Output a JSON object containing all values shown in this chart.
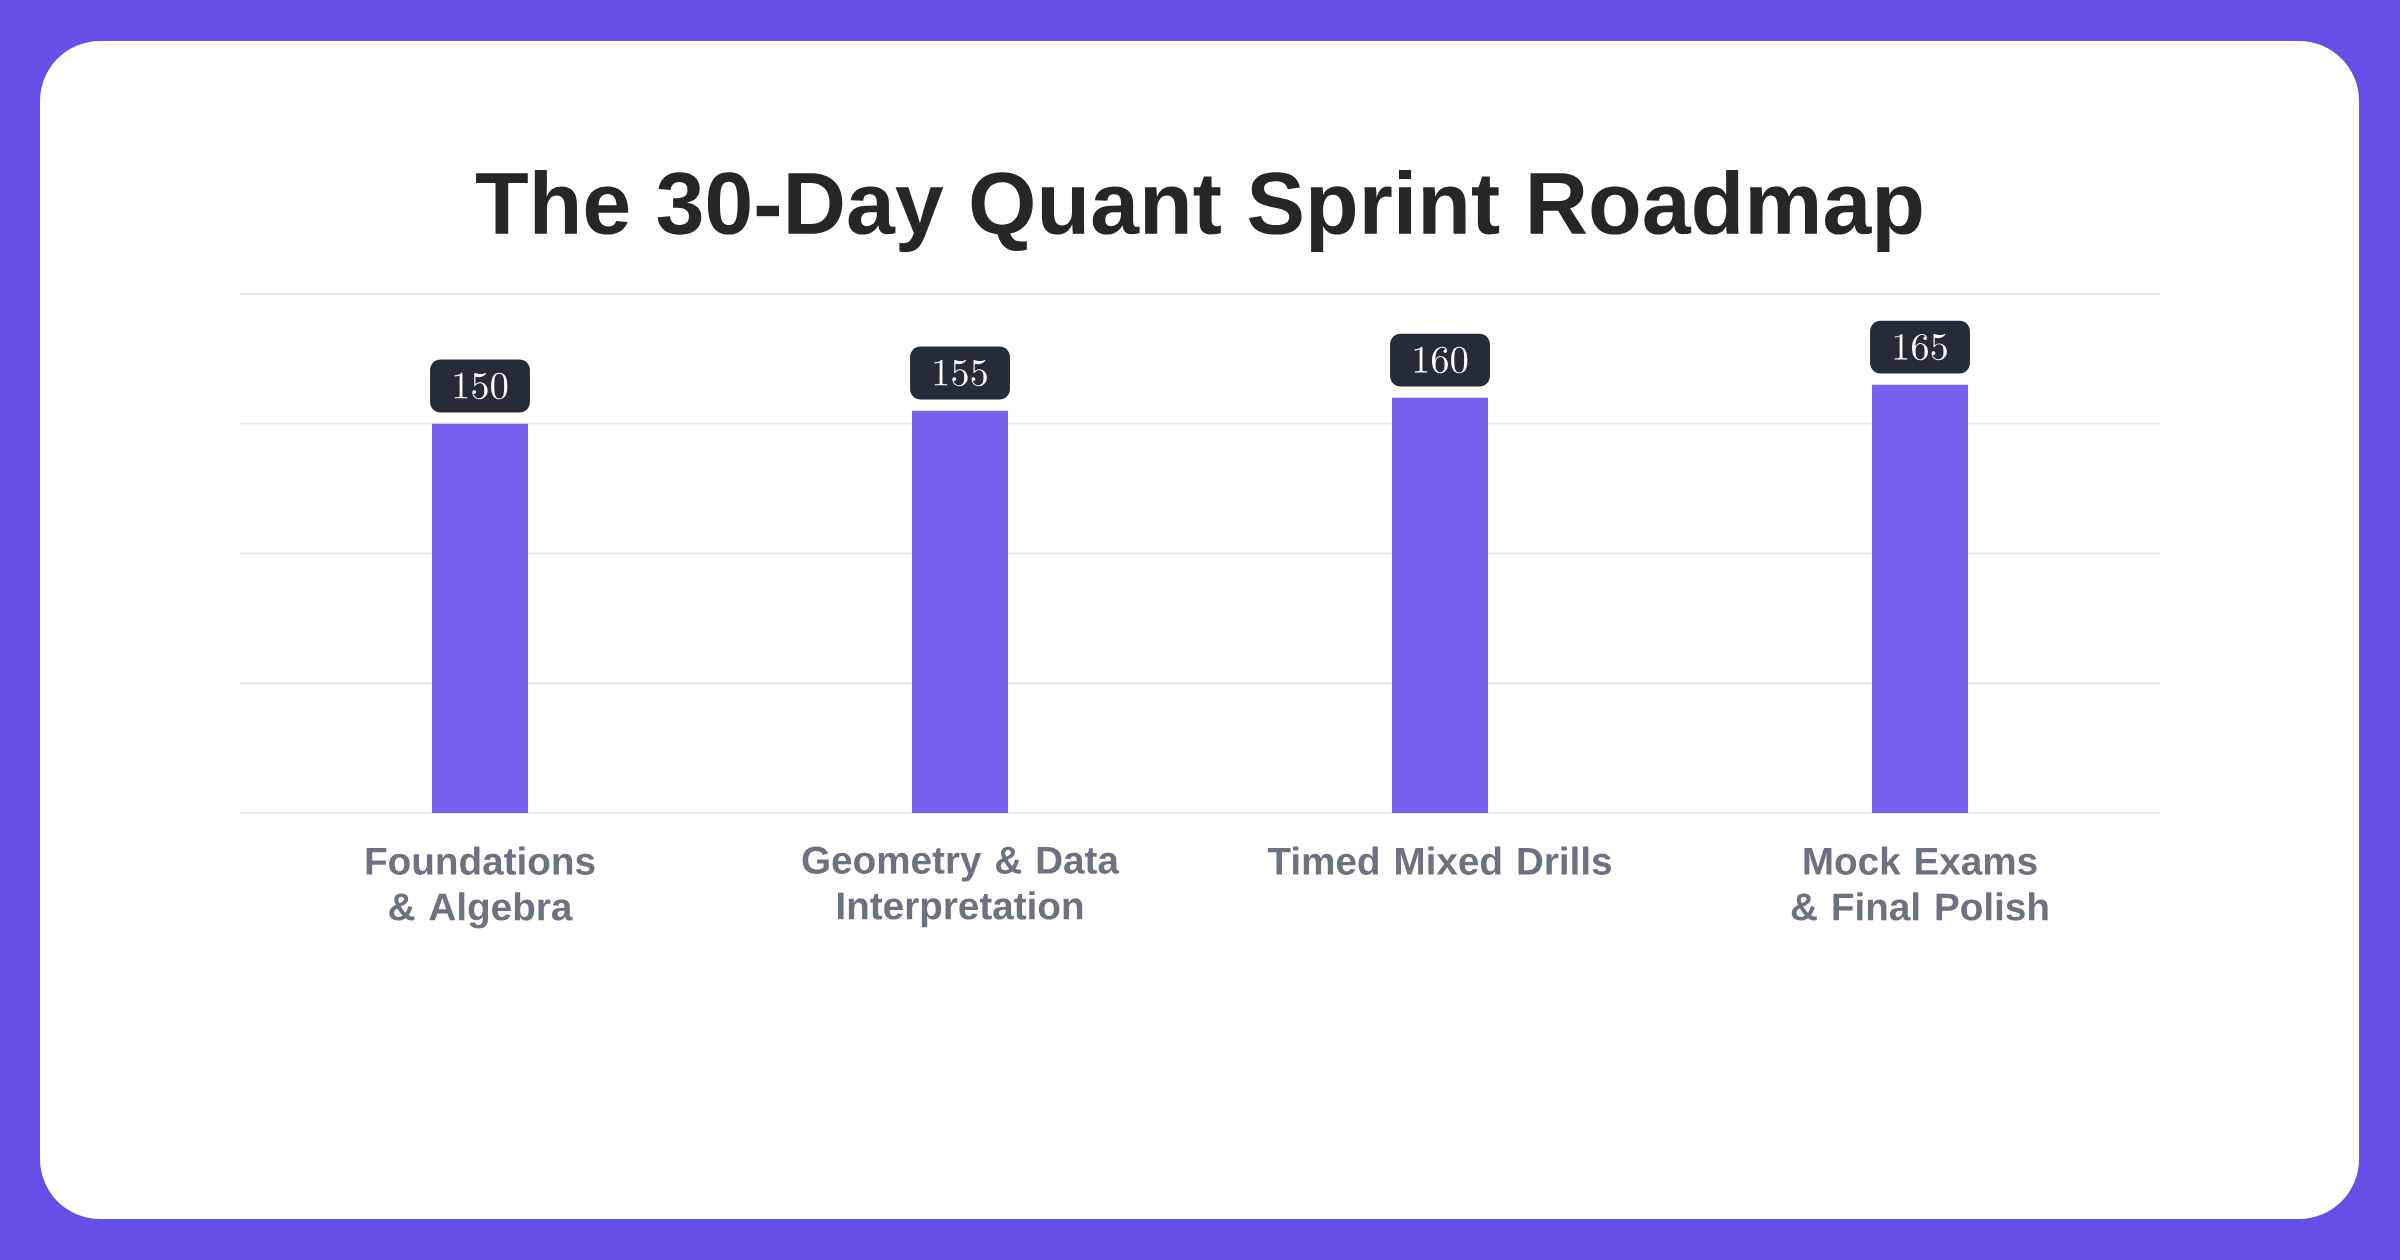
{
  "chart_data": {
    "type": "bar",
    "title": "The 30-Day Quant Sprint Roadmap",
    "categories": [
      "Foundations & Algebra",
      "Geometry & Data Interpretation",
      "Timed Mixed Drills",
      "Mock Exams & Final Polish"
    ],
    "values": [
      150,
      155,
      160,
      165
    ],
    "color": "#7462ee",
    "ylim": [
      0,
      200
    ],
    "yticks": [
      {
        "value": 0,
        "label": null
      },
      {
        "value": 50,
        "label": null
      },
      {
        "value": 100,
        "label": null
      },
      {
        "value": 150,
        "label": null
      },
      {
        "value": 200,
        "label": null
      }
    ],
    "tick_labels": "x",
    "grid": "y",
    "data_labels": true
  }
}
